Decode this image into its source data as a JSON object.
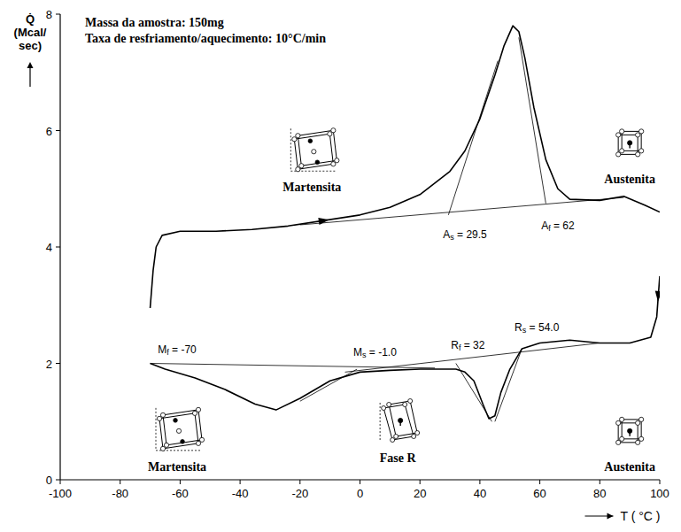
{
  "chart_data": {
    "type": "line",
    "notes": [
      "Massa da amostra: 150mg",
      "Taxa de resfriamento/aquecimento: 10°C/min"
    ],
    "xlabel": "T ( °C )",
    "ylabel": "Q̇ (Mcal/sec)",
    "xlim": [
      -100,
      100
    ],
    "xticks": [
      -100,
      -80,
      -60,
      -40,
      -20,
      0,
      20,
      40,
      60,
      80,
      100
    ],
    "ylim": [
      0,
      8
    ],
    "yticks": [
      0,
      2,
      4,
      6,
      8
    ],
    "grid": false,
    "color": "#000000",
    "series": [
      {
        "x": [
          -70,
          -69,
          -68,
          -66,
          -60,
          -48,
          -36,
          -24,
          0,
          10,
          20,
          30,
          35,
          40,
          45,
          48,
          51,
          53,
          55,
          58,
          62,
          66,
          70,
          80,
          88,
          95,
          100
        ],
        "values": [
          2.95,
          3.6,
          4.0,
          4.2,
          4.27,
          4.27,
          4.3,
          4.36,
          4.55,
          4.68,
          4.9,
          5.3,
          5.65,
          6.2,
          6.95,
          7.45,
          7.8,
          7.7,
          7.25,
          6.4,
          5.5,
          5.0,
          4.82,
          4.8,
          4.87,
          4.72,
          4.6
        ],
        "color": "#000000",
        "line_style": "solid",
        "marker": "arrow"
      },
      {
        "x": [
          100,
          99,
          97,
          90,
          80,
          70,
          60,
          54,
          50,
          47,
          45,
          43,
          41,
          38,
          35,
          32,
          20,
          10,
          0,
          -10,
          -20,
          -28,
          -35,
          -45,
          -55,
          -65,
          -70
        ],
        "values": [
          3.5,
          2.8,
          2.45,
          2.35,
          2.35,
          2.4,
          2.35,
          2.25,
          1.9,
          1.5,
          1.1,
          1.05,
          1.3,
          1.7,
          1.85,
          1.9,
          1.9,
          1.88,
          1.85,
          1.7,
          1.4,
          1.2,
          1.3,
          1.55,
          1.75,
          1.9,
          2.0
        ],
        "color": "#000000",
        "line_style": "solid",
        "marker": "arrow"
      },
      {
        "x": [
          -20,
          88
        ],
        "values": [
          4.38,
          4.85
        ],
        "color": "#000000",
        "line_style": "thin"
      },
      {
        "x": [
          29.5,
          46
        ],
        "values": [
          4.55,
          7.2
        ],
        "color": "#000000",
        "line_style": "thin"
      },
      {
        "x": [
          62,
          53
        ],
        "values": [
          4.75,
          7.6
        ],
        "color": "#000000",
        "line_style": "thin"
      },
      {
        "x": [
          -70,
          25
        ],
        "values": [
          2.0,
          1.92
        ],
        "color": "#000000",
        "line_style": "thin"
      },
      {
        "x": [
          -5,
          80
        ],
        "values": [
          1.85,
          2.35
        ],
        "color": "#000000",
        "line_style": "thin"
      },
      {
        "x": [
          -1,
          -20
        ],
        "values": [
          1.9,
          1.35
        ],
        "color": "#000000",
        "line_style": "thin"
      },
      {
        "x": [
          32,
          44
        ],
        "values": [
          2.0,
          1.0
        ],
        "color": "#000000",
        "line_style": "thin"
      },
      {
        "x": [
          54,
          45
        ],
        "values": [
          2.25,
          1.0
        ],
        "color": "#000000",
        "line_style": "thin"
      }
    ],
    "annotations": [
      {
        "text": "As = 29.5",
        "x": 35,
        "y": 4.2
      },
      {
        "text": "Af = 62",
        "x": 66,
        "y": 4.35
      },
      {
        "text": "Mf = -70",
        "x": -61,
        "y": 2.22
      },
      {
        "text": "Ms = -1.0",
        "x": 5,
        "y": 2.18
      },
      {
        "text": "Rf = 32",
        "x": 36,
        "y": 2.3
      },
      {
        "text": "Rs = 54.0",
        "x": 59,
        "y": 2.6
      }
    ],
    "phases": [
      {
        "label": "Martensita",
        "x": -16,
        "y": 5.0,
        "marker": "monoclinic"
      },
      {
        "label": "Austenita",
        "x": 90,
        "y": 5.15,
        "marker": "cubic"
      },
      {
        "label": "Martensita",
        "x": -61,
        "y": 0.2,
        "marker": "monoclinic"
      },
      {
        "label": "Fase R",
        "x": 12.6,
        "y": 0.35,
        "marker": "rhombohedral"
      },
      {
        "label": "Austenita",
        "x": 90,
        "y": 0.2,
        "marker": "cubic"
      }
    ]
  }
}
